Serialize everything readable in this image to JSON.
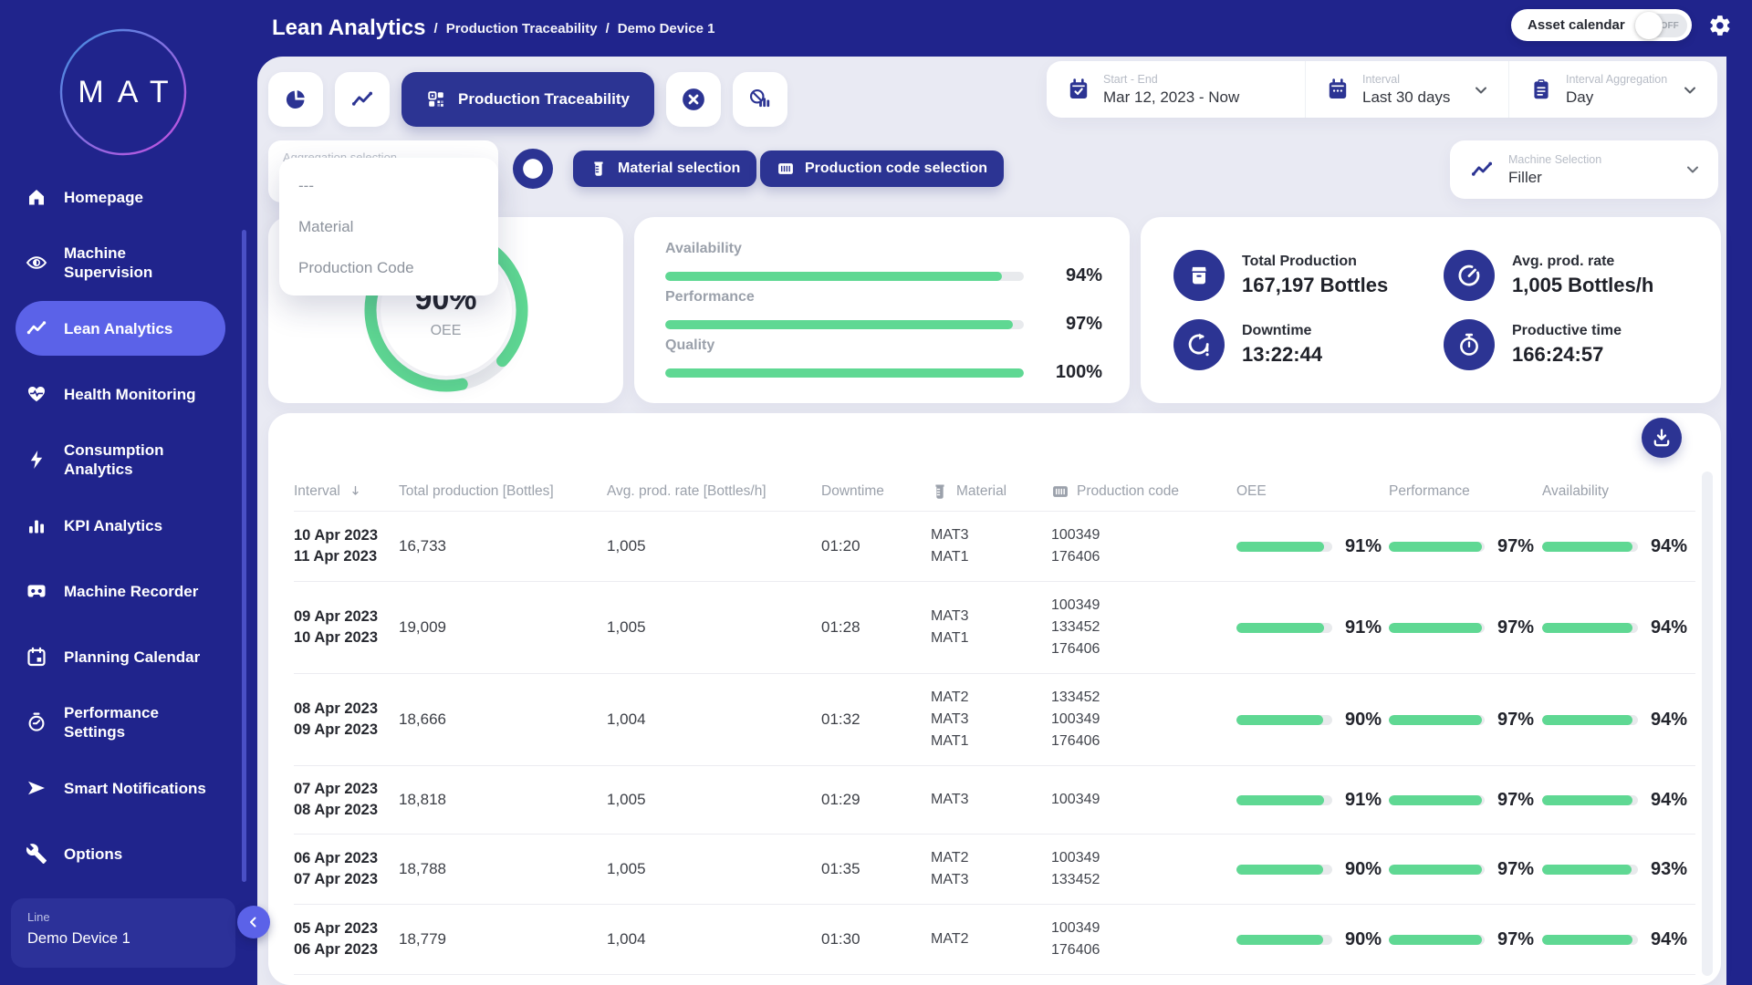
{
  "app": {
    "logo": "MAT"
  },
  "colors": {
    "navy": "#20248c",
    "element_navy": "#2c3493",
    "accent": "#5b62e8",
    "green": "#5fd893",
    "page_bg": "#e9eaf3"
  },
  "sidebar": {
    "items": [
      {
        "label": "Homepage",
        "icon": "home",
        "active": false
      },
      {
        "label": "Machine Supervision",
        "icon": "eye",
        "active": false
      },
      {
        "label": "Lean Analytics",
        "icon": "trend",
        "active": true
      },
      {
        "label": "Health Monitoring",
        "icon": "heart",
        "active": false
      },
      {
        "label": "Consumption Analytics",
        "icon": "bolt",
        "active": false
      },
      {
        "label": "KPI Analytics",
        "icon": "bars",
        "active": false
      },
      {
        "label": "Machine Recorder",
        "icon": "cassette",
        "active": false
      },
      {
        "label": "Planning Calendar",
        "icon": "calendar",
        "active": false
      },
      {
        "label": "Performance Settings",
        "icon": "timer",
        "active": false
      },
      {
        "label": "Smart Notifications",
        "icon": "send",
        "active": false
      },
      {
        "label": "Options",
        "icon": "wrench",
        "active": false
      }
    ],
    "device": {
      "label": "Line",
      "value": "Demo Device 1"
    }
  },
  "header": {
    "title": "Lean Analytics",
    "breadcrumbs": [
      "Production Traceability",
      "Demo Device 1"
    ],
    "asset_calendar": {
      "label": "Asset calendar",
      "state": "OFF"
    }
  },
  "toolbar": {
    "view_label": "Production Traceability",
    "icons": [
      "pie-chart-icon",
      "trend-icon",
      "qr-grid-icon",
      "cancel-icon",
      "no-report-icon"
    ],
    "start_end": {
      "label": "Start - End",
      "value": "Mar 12, 2023 - Now"
    },
    "interval": {
      "label": "Interval",
      "value": "Last 30 days"
    },
    "aggregation": {
      "label": "Interval Aggregation",
      "value": "Day"
    }
  },
  "filters": {
    "aggregation_selection": {
      "label": "Aggregation selection"
    },
    "dropdown_options": [
      "---",
      "Material",
      "Production Code"
    ],
    "material_btn": "Material selection",
    "production_code_btn": "Production code selection",
    "machine": {
      "label": "Machine Selection",
      "value": "Filler"
    }
  },
  "kpis": {
    "oee": {
      "value": "90%",
      "label": "OEE",
      "percent": 90
    },
    "bars": [
      {
        "label": "Availability",
        "value": "94%",
        "percent": 94
      },
      {
        "label": "Performance",
        "value": "97%",
        "percent": 97
      },
      {
        "label": "Quality",
        "value": "100%",
        "percent": 100
      }
    ],
    "stats": [
      {
        "label": "Total Production",
        "value": "167,197 Bottles",
        "icon": "box"
      },
      {
        "label": "Avg. prod. rate",
        "value": "1,005 Bottles/h",
        "icon": "gauge"
      },
      {
        "label": "Downtime",
        "value": "13:22:44",
        "icon": "refresh-alert"
      },
      {
        "label": "Productive time",
        "value": "166:24:57",
        "icon": "stopwatch"
      }
    ]
  },
  "table": {
    "columns": [
      {
        "label": "Interval",
        "sort": true
      },
      {
        "label": "Total production [Bottles]"
      },
      {
        "label": "Avg. prod. rate [Bottles/h]"
      },
      {
        "label": "Downtime"
      },
      {
        "label": "Material",
        "icon": "material"
      },
      {
        "label": "Production code",
        "icon": "barcode"
      },
      {
        "label": "OEE"
      },
      {
        "label": "Performance"
      },
      {
        "label": "Availability"
      }
    ],
    "rows": [
      {
        "interval": [
          "10 Apr 2023",
          "11 Apr 2023"
        ],
        "total": "16,733",
        "rate": "1,005",
        "downtime": "01:20",
        "materials": [
          "MAT3",
          "MAT1"
        ],
        "codes": [
          "100349",
          "176406"
        ],
        "oee": 91,
        "performance": 97,
        "availability": 94
      },
      {
        "interval": [
          "09 Apr 2023",
          "10 Apr 2023"
        ],
        "total": "19,009",
        "rate": "1,005",
        "downtime": "01:28",
        "materials": [
          "MAT3",
          "MAT1"
        ],
        "codes": [
          "100349",
          "133452",
          "176406"
        ],
        "oee": 91,
        "performance": 97,
        "availability": 94
      },
      {
        "interval": [
          "08 Apr 2023",
          "09 Apr 2023"
        ],
        "total": "18,666",
        "rate": "1,004",
        "downtime": "01:32",
        "materials": [
          "MAT2",
          "MAT3",
          "MAT1"
        ],
        "codes": [
          "133452",
          "100349",
          "176406"
        ],
        "oee": 90,
        "performance": 97,
        "availability": 94
      },
      {
        "interval": [
          "07 Apr 2023",
          "08 Apr 2023"
        ],
        "total": "18,818",
        "rate": "1,005",
        "downtime": "01:29",
        "materials": [
          "MAT3"
        ],
        "codes": [
          "100349"
        ],
        "oee": 91,
        "performance": 97,
        "availability": 94
      },
      {
        "interval": [
          "06 Apr 2023",
          "07 Apr 2023"
        ],
        "total": "18,788",
        "rate": "1,005",
        "downtime": "01:35",
        "materials": [
          "MAT2",
          "MAT3"
        ],
        "codes": [
          "100349",
          "133452"
        ],
        "oee": 90,
        "performance": 97,
        "availability": 93
      },
      {
        "interval": [
          "05 Apr 2023",
          "06 Apr 2023"
        ],
        "total": "18,779",
        "rate": "1,004",
        "downtime": "01:30",
        "materials": [
          "MAT2"
        ],
        "codes": [
          "100349",
          "176406"
        ],
        "oee": 90,
        "performance": 97,
        "availability": 94
      }
    ]
  }
}
